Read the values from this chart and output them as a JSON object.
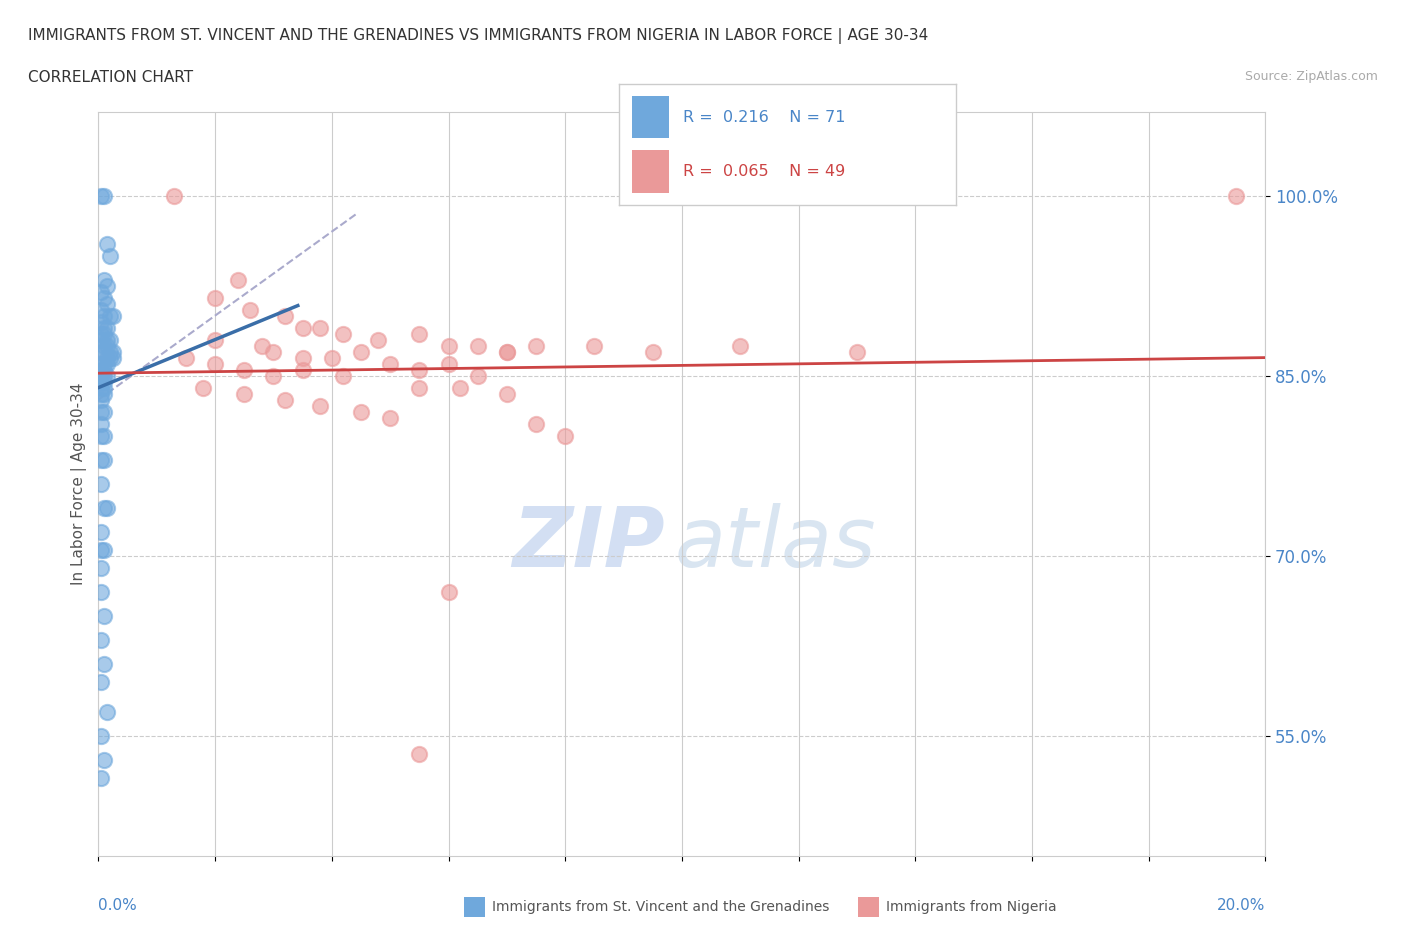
{
  "title_line1": "IMMIGRANTS FROM ST. VINCENT AND THE GRENADINES VS IMMIGRANTS FROM NIGERIA IN LABOR FORCE | AGE 30-34",
  "title_line2": "CORRELATION CHART",
  "source_text": "Source: ZipAtlas.com",
  "ylabel": "In Labor Force | Age 30-34",
  "xlim": [
    0.0,
    20.0
  ],
  "ylim": [
    45.0,
    107.0
  ],
  "blue_color": "#6fa8dc",
  "pink_color": "#ea9999",
  "blue_line_color": "#3a6ea8",
  "pink_line_color": "#cc4444",
  "gray_dash_color": "#aaaacc",
  "watermark_zip": "ZIP",
  "watermark_atlas": "atlas",
  "blue_scatter": [
    [
      0.05,
      100.0
    ],
    [
      0.1,
      100.0
    ],
    [
      0.15,
      96.0
    ],
    [
      0.2,
      95.0
    ],
    [
      0.1,
      93.0
    ],
    [
      0.15,
      92.5
    ],
    [
      0.05,
      92.0
    ],
    [
      0.1,
      91.5
    ],
    [
      0.15,
      91.0
    ],
    [
      0.05,
      90.5
    ],
    [
      0.1,
      90.0
    ],
    [
      0.2,
      90.0
    ],
    [
      0.25,
      90.0
    ],
    [
      0.05,
      89.5
    ],
    [
      0.1,
      89.0
    ],
    [
      0.15,
      89.0
    ],
    [
      0.05,
      88.5
    ],
    [
      0.1,
      88.5
    ],
    [
      0.15,
      88.0
    ],
    [
      0.2,
      88.0
    ],
    [
      0.05,
      88.0
    ],
    [
      0.1,
      87.5
    ],
    [
      0.15,
      87.5
    ],
    [
      0.2,
      87.0
    ],
    [
      0.25,
      87.0
    ],
    [
      0.05,
      87.0
    ],
    [
      0.1,
      87.0
    ],
    [
      0.15,
      86.5
    ],
    [
      0.2,
      86.5
    ],
    [
      0.25,
      86.5
    ],
    [
      0.05,
      86.0
    ],
    [
      0.1,
      86.0
    ],
    [
      0.15,
      86.0
    ],
    [
      0.05,
      85.5
    ],
    [
      0.1,
      85.5
    ],
    [
      0.05,
      85.0
    ],
    [
      0.1,
      85.0
    ],
    [
      0.15,
      85.0
    ],
    [
      0.05,
      84.5
    ],
    [
      0.1,
      84.5
    ],
    [
      0.05,
      84.0
    ],
    [
      0.1,
      84.0
    ],
    [
      0.05,
      83.5
    ],
    [
      0.1,
      83.5
    ],
    [
      0.05,
      83.0
    ],
    [
      0.05,
      82.0
    ],
    [
      0.1,
      82.0
    ],
    [
      0.05,
      81.0
    ],
    [
      0.05,
      80.0
    ],
    [
      0.1,
      80.0
    ],
    [
      0.05,
      78.0
    ],
    [
      0.1,
      78.0
    ],
    [
      0.05,
      76.0
    ],
    [
      0.1,
      74.0
    ],
    [
      0.15,
      74.0
    ],
    [
      0.05,
      72.0
    ],
    [
      0.05,
      70.5
    ],
    [
      0.1,
      70.5
    ],
    [
      0.05,
      69.0
    ],
    [
      0.05,
      67.0
    ],
    [
      0.1,
      65.0
    ],
    [
      0.05,
      63.0
    ],
    [
      0.1,
      61.0
    ],
    [
      0.05,
      59.5
    ],
    [
      0.15,
      57.0
    ],
    [
      0.05,
      55.0
    ],
    [
      0.1,
      53.0
    ],
    [
      0.05,
      51.5
    ]
  ],
  "pink_scatter": [
    [
      1.3,
      100.0
    ],
    [
      2.4,
      93.0
    ],
    [
      2.0,
      91.5
    ],
    [
      2.6,
      90.5
    ],
    [
      3.2,
      90.0
    ],
    [
      3.5,
      89.0
    ],
    [
      3.8,
      89.0
    ],
    [
      4.2,
      88.5
    ],
    [
      4.8,
      88.0
    ],
    [
      5.5,
      88.5
    ],
    [
      6.0,
      87.5
    ],
    [
      6.5,
      87.5
    ],
    [
      7.0,
      87.0
    ],
    [
      7.5,
      87.5
    ],
    [
      8.5,
      87.5
    ],
    [
      9.5,
      87.0
    ],
    [
      11.0,
      87.5
    ],
    [
      13.0,
      87.0
    ],
    [
      19.5,
      100.0
    ],
    [
      2.0,
      88.0
    ],
    [
      2.8,
      87.5
    ],
    [
      3.0,
      87.0
    ],
    [
      3.5,
      86.5
    ],
    [
      4.0,
      86.5
    ],
    [
      4.5,
      87.0
    ],
    [
      5.0,
      86.0
    ],
    [
      5.5,
      85.5
    ],
    [
      6.0,
      86.0
    ],
    [
      6.5,
      85.0
    ],
    [
      1.5,
      86.5
    ],
    [
      2.0,
      86.0
    ],
    [
      2.5,
      85.5
    ],
    [
      3.0,
      85.0
    ],
    [
      3.5,
      85.5
    ],
    [
      4.2,
      85.0
    ],
    [
      5.5,
      84.0
    ],
    [
      6.2,
      84.0
    ],
    [
      7.0,
      83.5
    ],
    [
      1.8,
      84.0
    ],
    [
      2.5,
      83.5
    ],
    [
      3.2,
      83.0
    ],
    [
      3.8,
      82.5
    ],
    [
      4.5,
      82.0
    ],
    [
      5.0,
      81.5
    ],
    [
      7.5,
      81.0
    ],
    [
      8.0,
      80.0
    ],
    [
      7.0,
      87.0
    ],
    [
      6.0,
      67.0
    ],
    [
      5.5,
      53.5
    ]
  ]
}
